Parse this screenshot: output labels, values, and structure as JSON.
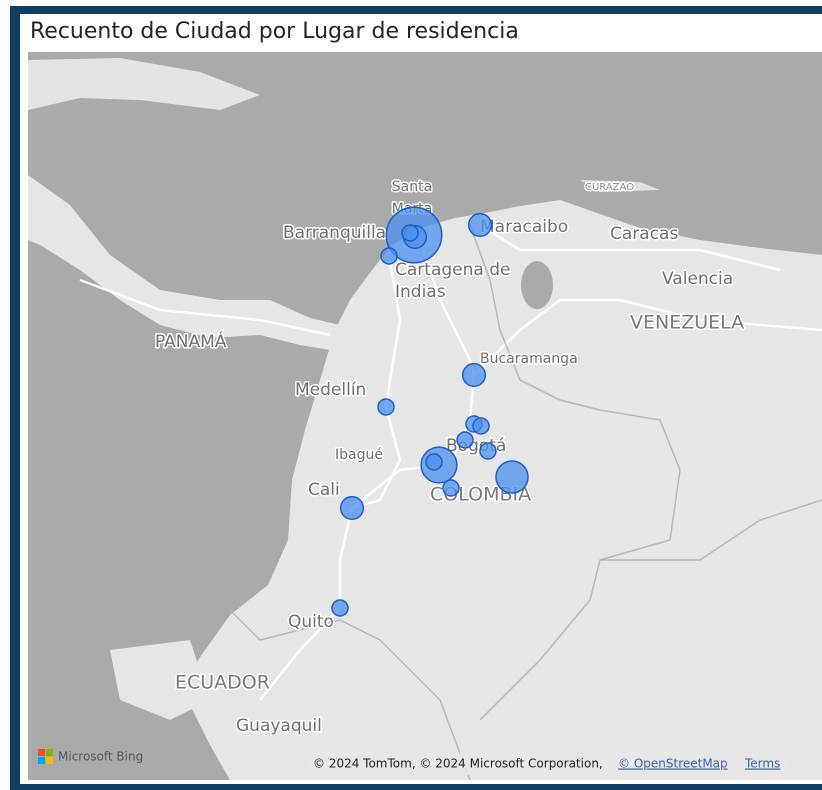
{
  "header": {
    "title": "Recuento de Ciudad por Lugar de residencia"
  },
  "map": {
    "labels": [
      {
        "lines": [
          "Santa",
          "Marta"
        ]
      },
      {
        "lines": [
          "Barranquilla"
        ]
      },
      {
        "lines": [
          "Maracaibo"
        ]
      },
      {
        "lines": [
          "CURAZAO"
        ]
      },
      {
        "lines": [
          "Caracas"
        ]
      },
      {
        "lines": [
          "Cartagena de",
          "Indias"
        ]
      },
      {
        "lines": [
          "Valencia"
        ]
      },
      {
        "lines": [
          "PANAMÁ"
        ]
      },
      {
        "lines": [
          "VENEZUELA"
        ]
      },
      {
        "lines": [
          "Bucaramanga"
        ]
      },
      {
        "lines": [
          "Medellín"
        ]
      },
      {
        "lines": [
          "Ibagué"
        ]
      },
      {
        "lines": [
          "Bogotá"
        ]
      },
      {
        "lines": [
          "Cali"
        ]
      },
      {
        "lines": [
          "COLOMBIA"
        ]
      },
      {
        "lines": [
          "Quito"
        ]
      },
      {
        "lines": [
          "ECUADOR"
        ]
      },
      {
        "lines": [
          "Guayaquil"
        ]
      }
    ],
    "bubbles": [
      12,
      2,
      1,
      1,
      2,
      2,
      1,
      1,
      1,
      1,
      1,
      5,
      1,
      4,
      1,
      2,
      1
    ],
    "color": "#4a90f0"
  },
  "footer": {
    "brand": "Microsoft Bing",
    "attribution": "© 2024 TomTom, © 2024 Microsoft Corporation,",
    "osm": "© OpenStreetMap",
    "terms": "Terms"
  }
}
